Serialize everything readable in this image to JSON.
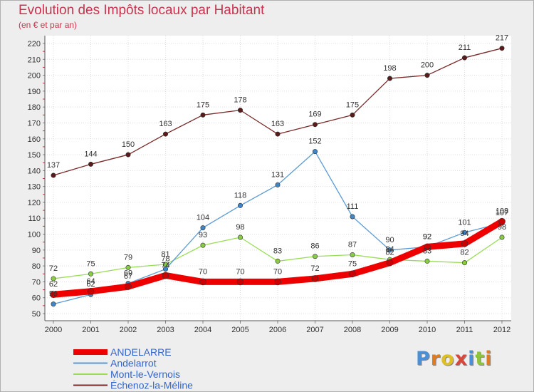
{
  "title": "Evolution des Impôts locaux par Habitant",
  "subtitle": "(en € et par an)",
  "logo": "Proxiti",
  "chart_data": {
    "type": "line",
    "title": "Evolution des Impôts locaux par Habitant",
    "subtitle": "(en € et par an)",
    "x": [
      "2000",
      "2001",
      "2002",
      "2003",
      "2004",
      "2005",
      "2006",
      "2007",
      "2008",
      "2009",
      "2010",
      "2011",
      "2012"
    ],
    "ylim": [
      50,
      220
    ],
    "yticks": [
      50,
      60,
      70,
      80,
      90,
      100,
      110,
      120,
      130,
      140,
      150,
      160,
      170,
      180,
      190,
      200,
      210,
      220
    ],
    "grid": true,
    "legend_position": "bottom-left",
    "series": [
      {
        "name": "ANDELARRE",
        "color": "#ee0000",
        "values": [
          62,
          64,
          67,
          74,
          70,
          70,
          70,
          72,
          75,
          82,
          92,
          94,
          108
        ]
      },
      {
        "name": "Andelarrot",
        "color": "#5b9bd5",
        "values": [
          56,
          62,
          69,
          78,
          104,
          118,
          131,
          152,
          111,
          90,
          92,
          101,
          107
        ]
      },
      {
        "name": "Mont-le-Vernois",
        "color": "#99dd55",
        "values": [
          72,
          75,
          79,
          81,
          93,
          98,
          83,
          86,
          87,
          84,
          83,
          82,
          98
        ]
      },
      {
        "name": "Échenoz-la-Méline",
        "color": "#7a2a2a",
        "values": [
          137,
          144,
          150,
          163,
          175,
          178,
          163,
          169,
          175,
          198,
          200,
          211,
          217
        ]
      }
    ]
  },
  "legend": [
    {
      "label": "ANDELARRE",
      "color": "#ee0000"
    },
    {
      "label": "Andelarrot",
      "color": "#5b9bd5"
    },
    {
      "label": "Mont-le-Vernois",
      "color": "#99dd55"
    },
    {
      "label": "Échenoz-la-Méline",
      "color": "#7a2a2a"
    }
  ]
}
